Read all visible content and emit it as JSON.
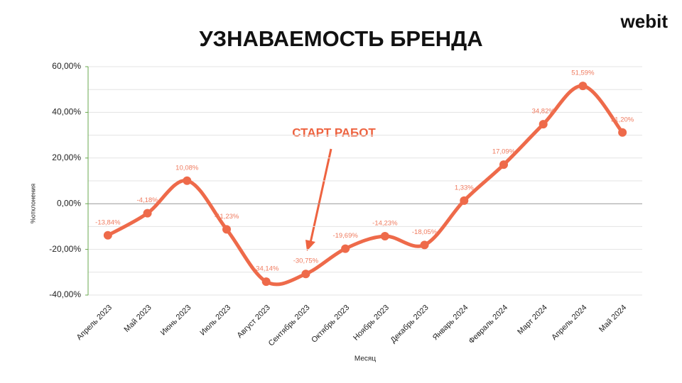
{
  "logo": "webit",
  "chart_data": {
    "type": "line",
    "title": "УЗНАВАЕМОСТЬ БРЕНДА",
    "y_label": "%отклонения",
    "x_label": "Месяц",
    "annotation": "СТАРТ РАБОТ",
    "categories": [
      "Апрель 2023",
      "Май 2023",
      "Июнь 2023",
      "Июль 2023",
      "Август 2023",
      "Сентябрь 2023",
      "Октябрь 2023",
      "Ноябрь 2023",
      "Декабрь 2023",
      "Январь 2024",
      "Февраль 2024",
      "Март 2024",
      "Апрель 2024",
      "Май 2024"
    ],
    "series": [
      {
        "color": "#ee6a4a",
        "values": [
          -13.84,
          -4.18,
          10.08,
          -11.23,
          -34.14,
          -30.75,
          -19.69,
          -14.23,
          -18.05,
          1.33,
          17.09,
          34.82,
          51.59,
          31.2
        ],
        "value_labels": [
          "-13,84%",
          "-4,18%",
          "10,08%",
          "-11,23%",
          "-34,14%",
          "-30,75%",
          "-19,69%",
          "-14,23%",
          "-18,05%",
          "1,33%",
          "17,09%",
          "34,82%",
          "51,59%",
          "31,20%"
        ]
      }
    ],
    "ylim": [
      -40,
      60
    ],
    "yticks": [
      {
        "value": -40,
        "label": "-40,00%"
      },
      {
        "value": -20,
        "label": "-20,00%"
      },
      {
        "value": 0,
        "label": "0,00%"
      },
      {
        "value": 20,
        "label": "20,00%"
      },
      {
        "value": 40,
        "label": "40,00%"
      },
      {
        "value": 60,
        "label": "60,00%"
      }
    ],
    "minor_yticks": [
      -30,
      -10,
      10,
      30,
      50
    ],
    "grid": true,
    "smooth": true
  }
}
